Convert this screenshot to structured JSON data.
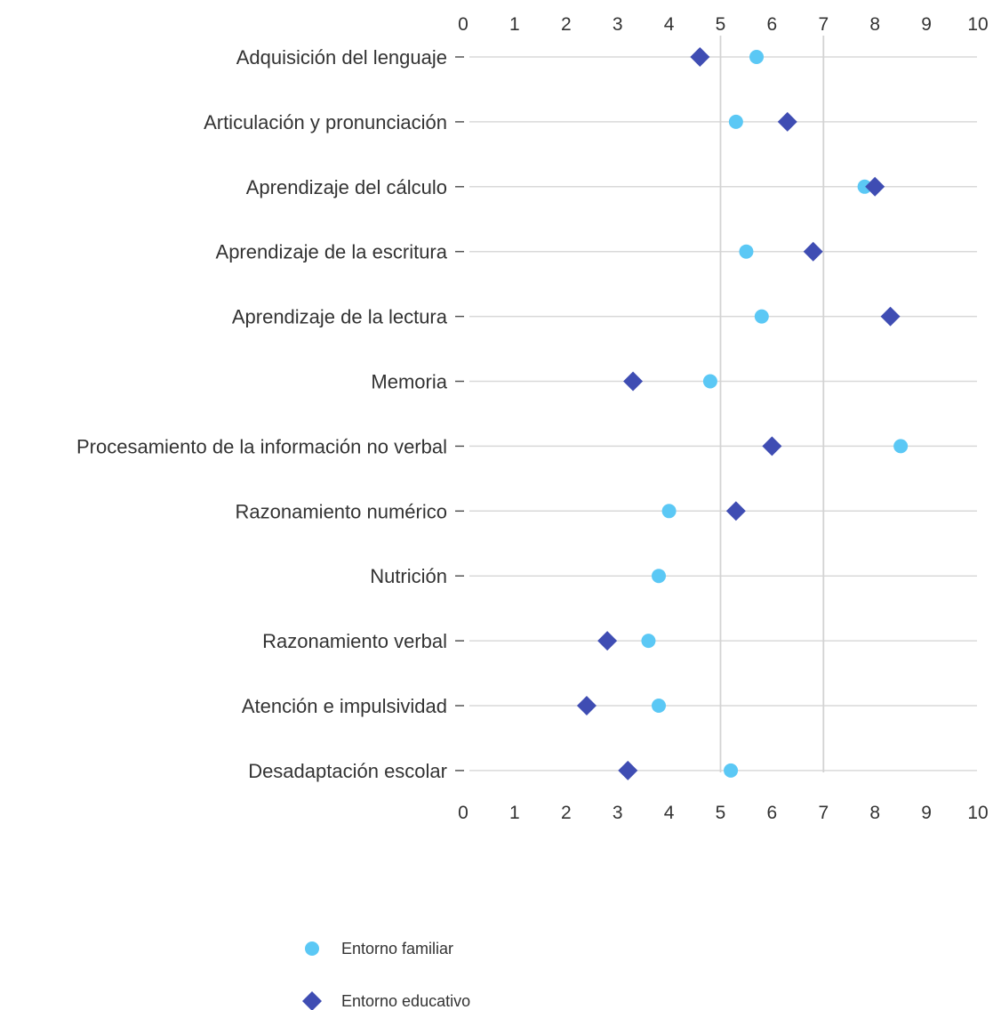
{
  "chart_data": {
    "type": "scatter",
    "orientation": "horizontal-dot-plot",
    "categories": [
      "Adquisición del lenguaje",
      "Articulación y pronunciación",
      "Aprendizaje del cálculo",
      "Aprendizaje de la escritura",
      "Aprendizaje de la lectura",
      "Memoria",
      "Procesamiento de la información no verbal",
      "Razonamiento numérico",
      "Nutrición",
      "Razonamiento verbal",
      "Atención e impulsividad",
      "Desadaptación escolar"
    ],
    "series": [
      {
        "name": "Entorno familiar",
        "marker": "circle",
        "color": "#5bc8f5",
        "values": [
          5.7,
          5.3,
          7.8,
          5.5,
          5.8,
          4.8,
          8.5,
          4.0,
          3.8,
          3.6,
          3.8,
          5.2
        ]
      },
      {
        "name": "Entorno educativo",
        "marker": "diamond",
        "color": "#3f4db3",
        "values": [
          4.6,
          6.3,
          8.0,
          6.8,
          8.3,
          3.3,
          6.0,
          5.3,
          null,
          2.8,
          2.4,
          3.2
        ]
      }
    ],
    "x_ticks": [
      "0",
      "1",
      "2",
      "3",
      "4",
      "5",
      "6",
      "7",
      "8",
      "9",
      "10"
    ],
    "xlim": [
      0,
      10
    ],
    "reference_lines": [
      5,
      7
    ],
    "x_axis_position": "top-and-bottom",
    "grid": "horizontal",
    "legend_position": "bottom-center",
    "title": "",
    "xlabel": "",
    "ylabel": ""
  }
}
